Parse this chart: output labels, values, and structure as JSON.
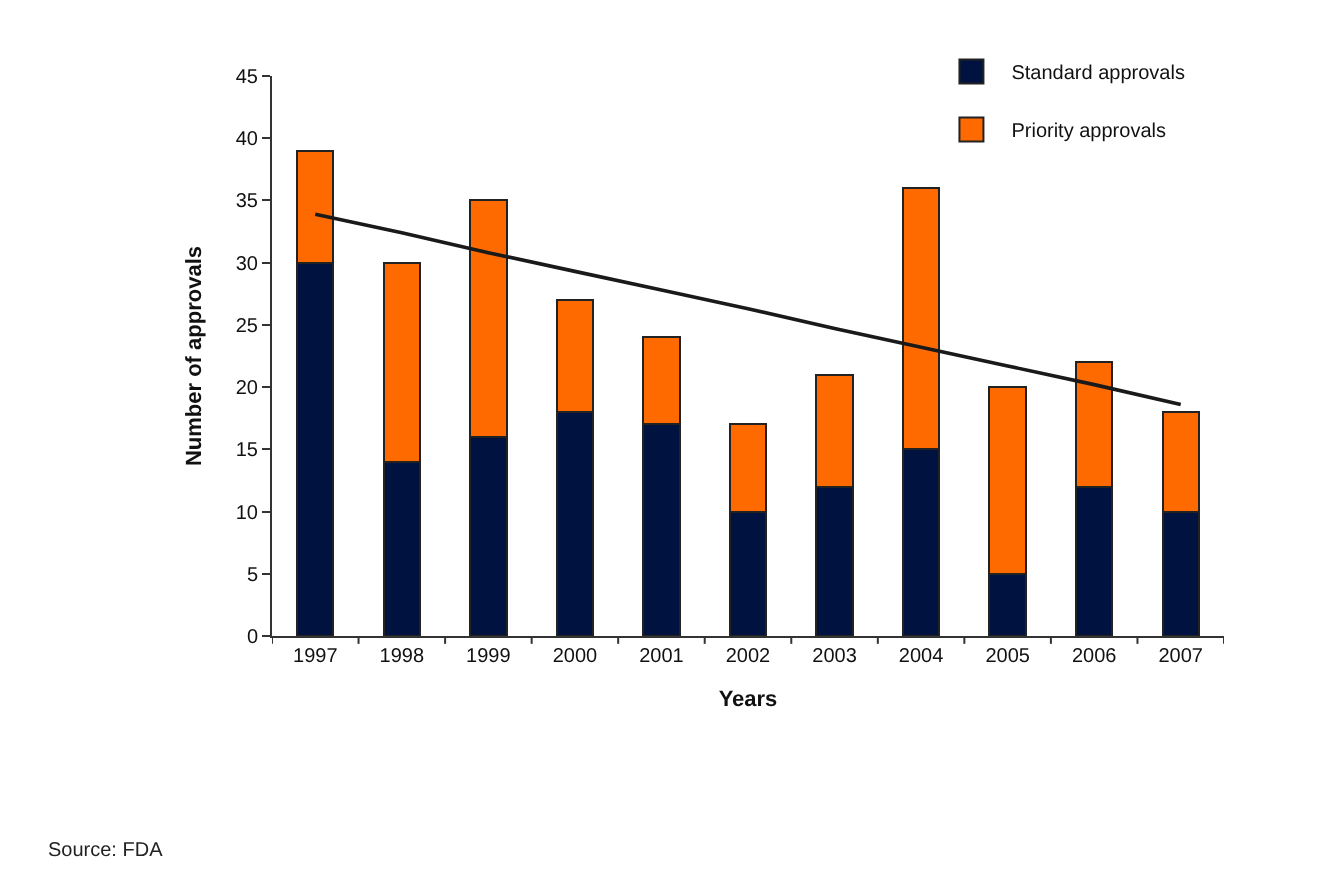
{
  "chart_data": {
    "type": "bar",
    "stacked": true,
    "categories": [
      "1997",
      "1998",
      "1999",
      "2000",
      "2001",
      "2002",
      "2003",
      "2004",
      "2005",
      "2006",
      "2007"
    ],
    "xlabel": "Years",
    "ylabel": "Number of approvals",
    "ylim": [
      0,
      45
    ],
    "yticks": [
      0,
      5,
      10,
      15,
      20,
      25,
      30,
      35,
      40,
      45
    ],
    "series": [
      {
        "name": "Standard approvals",
        "color": "#00123f",
        "values": [
          30,
          14,
          16,
          18,
          17,
          10,
          12,
          15,
          5,
          12,
          10
        ]
      },
      {
        "name": "Priority approvals",
        "color": "#ff6a00",
        "values": [
          9,
          16,
          19,
          9,
          7,
          7,
          9,
          21,
          15,
          10,
          8
        ]
      },
      {
        "type": "line",
        "values": [
          33.9,
          32.4,
          30.8,
          29.3,
          27.8,
          26.3,
          24.7,
          23.2,
          21.7,
          20.2,
          18.6
        ],
        "color": "#1a1a1a"
      }
    ],
    "legend": "top right",
    "annotations": [
      "Source: FDA"
    ]
  }
}
